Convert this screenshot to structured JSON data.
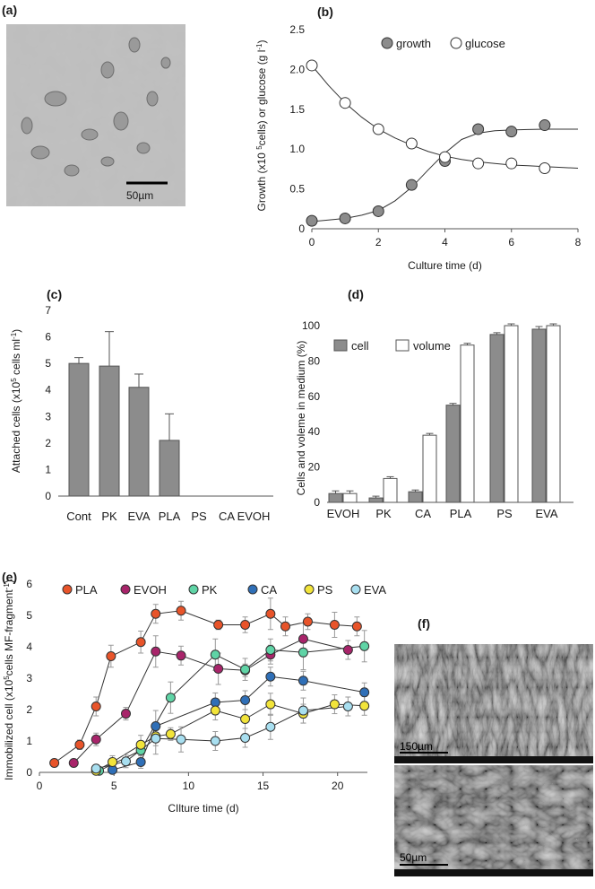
{
  "panels": {
    "a": {
      "label": "(a)",
      "scale_bar": "50µm",
      "image_kind": "micrograph of cultured cells"
    },
    "f": {
      "label": "(f)",
      "top_scale": "150µm",
      "bottom_scale": "50µm",
      "image_kind": "SEM images of fibrous material"
    }
  },
  "chart_data": [
    {
      "id": "b",
      "label": "(b)",
      "type": "scatter",
      "xlabel": "Culture time (d)",
      "ylabel": "Growth (x10 5 cells) or glucose (g l-1)",
      "xlim": [
        0,
        8
      ],
      "ylim": [
        0,
        2.5
      ],
      "xticks": [
        0,
        2,
        4,
        6,
        8
      ],
      "yticks": [
        0,
        0.5,
        1.0,
        1.5,
        2.0,
        2.5
      ],
      "ytick_labels": [
        "0",
        "0.5",
        "1.0",
        "1.5",
        "2.0",
        "2.5"
      ],
      "legend_position": "top-right",
      "series": [
        {
          "name": "growth",
          "color": "#8c8c8c",
          "x": [
            0,
            1,
            2,
            3,
            4,
            5,
            6,
            7
          ],
          "y": [
            0.1,
            0.13,
            0.22,
            0.55,
            0.85,
            1.25,
            1.22,
            1.3
          ],
          "curve_x": [
            0,
            0.5,
            1,
            1.5,
            2,
            2.5,
            3,
            3.5,
            4,
            4.5,
            5,
            5.5,
            6,
            6.5,
            7,
            7.5,
            8
          ],
          "curve_y": [
            0.09,
            0.11,
            0.13,
            0.17,
            0.23,
            0.35,
            0.52,
            0.74,
            0.95,
            1.12,
            1.2,
            1.23,
            1.24,
            1.245,
            1.25,
            1.25,
            1.25
          ]
        },
        {
          "name": "glucose",
          "color": "#ffffff",
          "x": [
            0,
            1,
            2,
            3,
            4,
            5,
            6,
            7
          ],
          "y": [
            2.05,
            1.58,
            1.25,
            1.07,
            0.9,
            0.82,
            0.82,
            0.76
          ],
          "curve_x": [
            0,
            0.5,
            1,
            1.5,
            2,
            2.5,
            3,
            3.5,
            4,
            4.5,
            5,
            5.5,
            6,
            6.5,
            7,
            7.5,
            8
          ],
          "curve_y": [
            2.05,
            1.8,
            1.58,
            1.4,
            1.25,
            1.14,
            1.05,
            0.97,
            0.91,
            0.87,
            0.84,
            0.82,
            0.8,
            0.79,
            0.78,
            0.77,
            0.76
          ]
        }
      ]
    },
    {
      "id": "c",
      "label": "(c)",
      "type": "bar",
      "ylabel": "Attached cells (x10 5 cells ml-1)",
      "ylim": [
        0,
        7
      ],
      "yticks": [
        0,
        1,
        2,
        3,
        4,
        5,
        6,
        7
      ],
      "categories": [
        "Cont",
        "PK",
        "EVA",
        "PLA",
        "PS",
        "CA",
        "EVOH"
      ],
      "values": [
        5.0,
        4.9,
        4.1,
        2.1,
        0,
        0,
        0
      ],
      "errors": [
        0.22,
        1.3,
        0.5,
        1.0,
        0,
        0,
        0
      ],
      "bar_color": "#8c8c8c"
    },
    {
      "id": "d",
      "label": "(d)",
      "type": "bar",
      "ylabel": "Cells and voleme in medium (%)",
      "ylim": [
        0,
        100
      ],
      "yticks": [
        0,
        20,
        40,
        60,
        80,
        100
      ],
      "categories": [
        "EVOH",
        "PK",
        "CA",
        "PLA",
        "PS",
        "EVA"
      ],
      "legend_position": "top-left",
      "series": [
        {
          "name": "cell",
          "color": "#8c8c8c",
          "values": [
            5,
            2.5,
            6,
            55,
            95,
            98
          ],
          "errors": [
            1.5,
            1,
            1,
            1,
            1,
            1.5
          ]
        },
        {
          "name": "volume",
          "color": "#ffffff",
          "values": [
            5,
            13.5,
            38,
            89,
            100,
            100
          ],
          "errors": [
            1.5,
            1,
            1,
            1,
            1,
            1
          ]
        }
      ]
    },
    {
      "id": "e",
      "label": "(e)",
      "type": "line",
      "xlabel": "CIlture time (d)",
      "ylabel": "Immobilized cell (x10 5 cells MF-fragment-1)",
      "xlim": [
        0,
        22
      ],
      "ylim": [
        0,
        6
      ],
      "xticks": [
        0,
        5,
        10,
        15,
        20
      ],
      "yticks": [
        0,
        1,
        2,
        3,
        4,
        5,
        6
      ],
      "legend_position": "top",
      "series": [
        {
          "name": "PLA",
          "color": "#e8542a",
          "x": [
            1,
            2.7,
            3.8,
            4.8,
            6.8,
            7.8,
            9.5,
            12,
            13.8,
            15.5,
            16.5,
            18,
            19.8,
            21.3
          ],
          "y": [
            0.3,
            0.88,
            2.1,
            3.7,
            4.15,
            5.05,
            5.15,
            4.7,
            4.7,
            5.05,
            4.65,
            4.8,
            4.7,
            4.65
          ],
          "err": [
            0,
            0.15,
            0.3,
            0.35,
            0.35,
            0.3,
            0.3,
            0.15,
            0.25,
            0.5,
            0.3,
            0.25,
            0.4,
            0.3
          ]
        },
        {
          "name": "EVOH",
          "color": "#a8246a",
          "x": [
            2.3,
            3.8,
            5.8,
            7.8,
            9.5,
            12,
            13.8,
            15.5,
            17.7,
            20.7
          ],
          "y": [
            0.3,
            1.05,
            1.87,
            3.85,
            3.72,
            3.3,
            3.25,
            3.75,
            4.25,
            3.9
          ],
          "err": [
            0,
            0.2,
            0.2,
            0.5,
            0.3,
            0.5,
            0.2,
            0.3,
            0.5,
            0.3
          ]
        },
        {
          "name": "PK",
          "color": "#5fd4a6",
          "x": [
            4,
            6.8,
            8.8,
            11.8,
            13.8,
            15.5,
            17.7,
            21.8
          ],
          "y": [
            0.05,
            0.7,
            2.38,
            3.75,
            3.28,
            3.9,
            3.82,
            4.02
          ],
          "err": [
            0,
            0.25,
            0.5,
            0.5,
            0.35,
            0.35,
            0.55,
            0.5
          ]
        },
        {
          "name": "CA",
          "color": "#2f6fb7",
          "x": [
            4.9,
            6.8,
            7.8,
            11.8,
            13.8,
            15.5,
            17.7,
            21.8
          ],
          "y": [
            0.08,
            0.33,
            1.47,
            2.23,
            2.3,
            3.05,
            2.92,
            2.55
          ],
          "err": [
            0,
            0.2,
            0.5,
            0.3,
            0.3,
            0.3,
            0.3,
            0.3
          ]
        },
        {
          "name": "PS",
          "color": "#f2e43a",
          "x": [
            3.8,
            4.9,
            6.8,
            7.8,
            8.8,
            11.8,
            13.8,
            15.5,
            17.7,
            19.8,
            21.8
          ],
          "y": [
            0.05,
            0.33,
            0.88,
            1.15,
            1.22,
            1.97,
            1.7,
            2.17,
            1.87,
            2.17,
            2.12
          ],
          "err": [
            0,
            0.2,
            0.3,
            0.3,
            0.2,
            0.3,
            0.3,
            0.35,
            0.3,
            0.3,
            0.3
          ]
        },
        {
          "name": "EVA",
          "color": "#a8dff0",
          "x": [
            3.8,
            5.8,
            7.8,
            9.5,
            11.8,
            13.8,
            15.5,
            17.7,
            20.7
          ],
          "y": [
            0.12,
            0.35,
            1.08,
            1.05,
            1.0,
            1.1,
            1.45,
            1.97,
            2.1
          ],
          "err": [
            0,
            0.2,
            0.5,
            0.4,
            0.3,
            0.3,
            0.4,
            0.4,
            0.3
          ]
        }
      ]
    }
  ]
}
